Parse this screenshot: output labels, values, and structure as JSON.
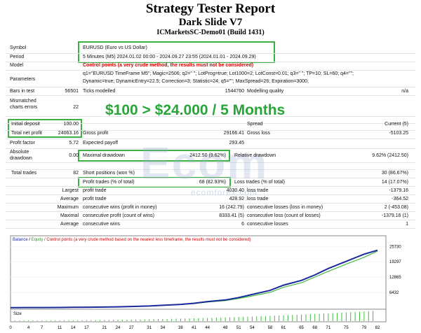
{
  "header": {
    "title": "Strategy Tester Report",
    "ea_name": "Dark Slide V7",
    "server": "ICMarketsSC-Demo01 (Build 1431)"
  },
  "promo": "$100 > $24.000 / 5 Months",
  "watermark": {
    "logo": "Ecom",
    "domain": "ecomforex.com"
  },
  "settings": {
    "symbol_label": "Symbol",
    "symbol": "EURUSD (Euro vs US Dollar)",
    "period_label": "Period",
    "period": "5 Minutes (M5) 2024.01.02 00:00 - 2024.09.27 23:55 (2024.01.01 - 2024.09.29)",
    "model_label": "Model",
    "model": "Control points (a very crude method, the results must not be considered)",
    "params_label": "Parameters",
    "params_line1": "q1=\"EURUSD TimeFrame M5\"; Magic=2506; q2=\" \"; LotProg=true; Lot1000=2; LotConst=0.01; q3=\" \"; TP=10; SL=60; q4=\"\";",
    "params_line2": "Dynamic=true; DynamicEntry=22.5; Correction=3; Statistic=24; q5=\"\"; MaxSpread=26; Expiration=3000;"
  },
  "stats": {
    "bars_label": "Bars in test",
    "bars": "56501",
    "ticks_label": "Ticks modelled",
    "ticks": "1544760",
    "quality_label": "Modelling quality",
    "quality": "n/a",
    "mismatch_label1": "Mismatched",
    "mismatch_label2": "charts errors",
    "mismatch": "22",
    "deposit_label": "Initial deposit",
    "deposit": "100.00",
    "spread_label": "Spread",
    "spread": "Current (5)",
    "netprofit_label": "Total net profit",
    "netprofit": "24063.16",
    "grossprofit_label": "Gross profit",
    "grossprofit": "29166.41",
    "grossloss_label": "Gross loss",
    "grossloss": "-5103.25",
    "pf_label": "Profit factor",
    "pf": "5.72",
    "ep_label": "Expected payoff",
    "ep": "293.45",
    "absdd_label1": "Absolute",
    "absdd_label2": "drawdown",
    "absdd": "0.00",
    "maxdd_label": "Maximal drawdown",
    "maxdd": "2412.50 (9.62%)",
    "reldd_label": "Relative drawdown",
    "reldd": "9.62% (2412.50)",
    "trades_label": "Total trades",
    "trades": "82",
    "short_label": "Short positions (won %)",
    "short": "",
    "long_val": "30 (86.67%)",
    "pt_label": "Profit trades (% of total)",
    "pt": "68 (82.93%)",
    "lt_label": "Loss trades (% of total)",
    "lt": "14 (17.07%)",
    "largest_label": "Largest",
    "lpt_label": "profit trade",
    "lpt": "4030.40",
    "llt_label": "loss trade",
    "llt": "-1379.16",
    "average_label": "Average",
    "apt_label": "profit trade",
    "apt": "428.92",
    "alt_label": "loss trade",
    "alt": "-364.52",
    "maximum_label": "Maximum",
    "mcw_label": "consecutive wins (profit in money)",
    "mcw": "16 (242.79)",
    "mcl_label": "consecutive losses (loss in money)",
    "mcl": "2 (-453.08)",
    "maximal_label": "Maximal",
    "mcp_label": "consecutive profit (count of wins)",
    "mcp": "8333.41 (5)",
    "mclc_label": "consecutive loss (count of losses)",
    "mclc": "-1379.16 (1)",
    "average2_label": "Average",
    "acw_label": "consecutive wins",
    "acw": "6",
    "acl_label": "consecutive losses",
    "acl": "1"
  },
  "chart": {
    "legend_balance": "Balance",
    "legend_sep": " / ",
    "legend_equity": "Equity",
    "legend_note": " / Control points (a very crude method based on the nearest less timeframe, the results must not be considered)",
    "size_label": "Size",
    "y_ticks": [
      "25730",
      "19297",
      "12865",
      "6432"
    ],
    "x_ticks": [
      "0",
      "4",
      "7",
      "11",
      "14",
      "17",
      "21",
      "24",
      "27",
      "31",
      "34",
      "38",
      "41",
      "44",
      "48",
      "51",
      "54",
      "58",
      "61",
      "65",
      "68",
      "71",
      "75",
      "79",
      "82"
    ],
    "balance_color": "#1a2a9c",
    "equity_color": "#45b845"
  },
  "chart_data": {
    "type": "line",
    "x": [
      0,
      4,
      7,
      11,
      14,
      17,
      21,
      24,
      27,
      31,
      34,
      38,
      41,
      44,
      48,
      51,
      54,
      58,
      61,
      65,
      68,
      71,
      75,
      79,
      82
    ],
    "series": [
      {
        "name": "Balance",
        "values": [
          100,
          110,
          130,
          160,
          200,
          250,
          320,
          420,
          560,
          760,
          1050,
          1450,
          1900,
          2600,
          3300,
          4300,
          5600,
          7300,
          9500,
          11500,
          13800,
          16500,
          19500,
          22500,
          24163
        ]
      },
      {
        "name": "Equity",
        "values": [
          100,
          105,
          125,
          150,
          190,
          240,
          300,
          400,
          520,
          720,
          980,
          1350,
          1750,
          2400,
          3000,
          3900,
          5000,
          6500,
          8600,
          10500,
          12900,
          15300,
          18300,
          21200,
          23800
        ]
      }
    ],
    "ylim": [
      0,
      27000
    ]
  }
}
